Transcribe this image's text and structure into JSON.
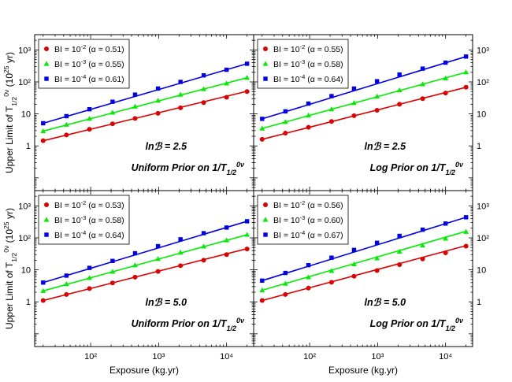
{
  "chart_data": [
    {
      "type": "scatter",
      "panel": "top-left",
      "xscale": "log",
      "yscale": "log",
      "xlim": [
        15,
        25000
      ],
      "ylim": [
        0.04,
        3000
      ],
      "ylabel": "Upper Limit of T_{1/2}^{0ν} (10^{25} yr)",
      "annotation_line1": "lnℬ = 2.5",
      "annotation_line2": "Uniform Prior on 1/T_{1/2}^{0ν}",
      "x": [
        20,
        44,
        96,
        210,
        450,
        980,
        2100,
        4600,
        10000,
        20000
      ],
      "series": [
        {
          "legend": "BI = 10^{-2} (α = 0.51)",
          "color": "#e00000",
          "marker": "circle",
          "values": [
            1.45,
            2.2,
            3.3,
            4.9,
            7.2,
            10.4,
            15.5,
            22.5,
            33,
            50
          ],
          "fit": [
            1.45,
            51
          ]
        },
        {
          "legend": "BI = 10^{-3} (α = 0.55)",
          "color": "#00ee00",
          "marker": "triangle",
          "values": [
            2.9,
            4.6,
            7.1,
            11,
            17,
            26,
            40,
            60,
            90,
            135
          ],
          "fit": [
            2.9,
            135
          ]
        },
        {
          "legend": "BI = 10^{-4} (α = 0.61)",
          "color": "#0000ee",
          "marker": "square",
          "values": [
            5.1,
            8.5,
            14,
            24,
            40,
            62,
            100,
            160,
            240,
            370
          ],
          "fit": [
            5.1,
            370
          ]
        }
      ]
    },
    {
      "type": "scatter",
      "panel": "top-right",
      "xscale": "log",
      "yscale": "log",
      "xlim": [
        15,
        25000
      ],
      "ylim": [
        0.04,
        3000
      ],
      "annotation_line1": "lnℬ = 2.5",
      "annotation_line2": "Log Prior on 1/T_{1/2}^{0ν}",
      "x": [
        20,
        44,
        96,
        210,
        450,
        980,
        2100,
        4600,
        10000,
        20000
      ],
      "series": [
        {
          "legend": "BI = 10^{-2} (α = 0.55)",
          "color": "#e00000",
          "marker": "circle",
          "values": [
            1.6,
            2.5,
            3.8,
            5.8,
            8.8,
            13,
            20,
            30,
            45,
            68
          ],
          "fit": [
            1.6,
            68
          ]
        },
        {
          "legend": "BI = 10^{-3} (α = 0.58)",
          "color": "#00ee00",
          "marker": "triangle",
          "values": [
            3.5,
            5.6,
            9,
            14,
            22,
            35,
            55,
            85,
            130,
            200
          ],
          "fit": [
            3.5,
            200
          ]
        },
        {
          "legend": "BI = 10^{-4} (α = 0.64)",
          "color": "#0000ee",
          "marker": "square",
          "values": [
            7,
            12,
            21,
            36,
            62,
            105,
            170,
            260,
            400,
            620
          ],
          "fit": [
            7,
            620
          ]
        }
      ]
    },
    {
      "type": "scatter",
      "panel": "bottom-left",
      "xscale": "log",
      "yscale": "log",
      "xlim": [
        15,
        25000
      ],
      "ylim": [
        0.04,
        3000
      ],
      "xlabel": "Exposure (kg.yr)",
      "ylabel": "Upper Limit of T_{1/2}^{0ν} (10^{25} yr)",
      "annotation_line1": "lnℬ = 5.0",
      "annotation_line2": "Uniform Prior on 1/T_{1/2}^{0ν}",
      "x": [
        20,
        44,
        96,
        210,
        450,
        980,
        2100,
        4600,
        10000,
        20000
      ],
      "series": [
        {
          "legend": "BI = 10^{-2} (α = 0.53)",
          "color": "#e00000",
          "marker": "circle",
          "values": [
            1.1,
            1.7,
            2.6,
            3.9,
            5.9,
            8.9,
            13.5,
            20,
            30,
            45
          ],
          "fit": [
            1.1,
            46
          ]
        },
        {
          "legend": "BI = 10^{-3} (α = 0.58)",
          "color": "#00ee00",
          "marker": "triangle",
          "values": [
            2.2,
            3.6,
            5.6,
            8.8,
            14,
            22,
            35,
            54,
            84,
            125
          ],
          "fit": [
            2.2,
            125
          ]
        },
        {
          "legend": "BI = 10^{-4} (α = 0.64)",
          "color": "#0000ee",
          "marker": "square",
          "values": [
            4,
            6.6,
            11.5,
            19,
            33,
            55,
            90,
            140,
            210,
            330
          ],
          "fit": [
            4,
            330
          ]
        }
      ]
    },
    {
      "type": "scatter",
      "panel": "bottom-right",
      "xscale": "log",
      "yscale": "log",
      "xlim": [
        15,
        25000
      ],
      "ylim": [
        0.04,
        3000
      ],
      "xlabel": "Exposure (kg.yr)",
      "annotation_line1": "lnℬ = 5.0",
      "annotation_line2": "Log Prior on 1/T_{1/2}^{0ν}",
      "x": [
        20,
        44,
        96,
        210,
        450,
        980,
        2100,
        4600,
        10000,
        20000
      ],
      "series": [
        {
          "legend": "BI = 10^{-2} (α = 0.56)",
          "color": "#e00000",
          "marker": "circle",
          "values": [
            1.1,
            1.7,
            2.7,
            4.1,
            6.3,
            9.5,
            14.5,
            22,
            34,
            55
          ],
          "fit": [
            1.1,
            57
          ]
        },
        {
          "legend": "BI = 10^{-3} (α = 0.60)",
          "color": "#00ee00",
          "marker": "triangle",
          "values": [
            2.3,
            3.7,
            5.9,
            9.3,
            15,
            23,
            37,
            58,
            95,
            155
          ],
          "fit": [
            2.3,
            160
          ]
        },
        {
          "legend": "BI = 10^{-4} (α = 0.67)",
          "color": "#0000ee",
          "marker": "square",
          "values": [
            4.6,
            8,
            14,
            24,
            42,
            70,
            115,
            180,
            280,
            440
          ],
          "fit": [
            4.6,
            440
          ]
        }
      ]
    }
  ],
  "tick_labels": {
    "y": [
      {
        "v": 1,
        "label": "1"
      },
      {
        "v": 10,
        "label": "10"
      },
      {
        "v": 100,
        "label": "10²"
      },
      {
        "v": 1000,
        "label": "10³"
      }
    ],
    "x": [
      {
        "v": 100,
        "label": "10²"
      },
      {
        "v": 1000,
        "label": "10³"
      },
      {
        "v": 10000,
        "label": "10⁴"
      }
    ]
  }
}
